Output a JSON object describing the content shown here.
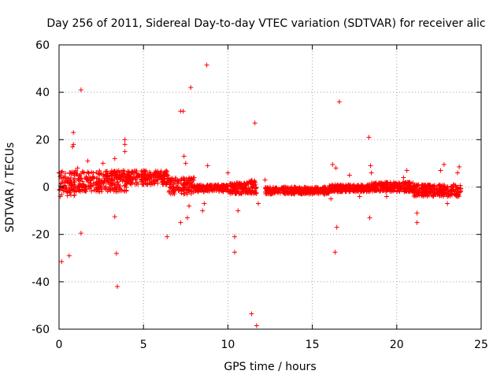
{
  "chart_data": {
    "type": "scatter",
    "title": "Day 256 of 2011, Sidereal Day-to-day VTEC variation (SDTVAR) for receiver alic",
    "xlabel": "GPS time / hours",
    "ylabel": "SDTVAR / TECUs",
    "xlim": [
      0,
      25
    ],
    "ylim": [
      -60,
      60
    ],
    "x_ticks": [
      0,
      5,
      10,
      15,
      20,
      25
    ],
    "y_ticks": [
      -60,
      -40,
      -20,
      0,
      20,
      40,
      60
    ],
    "x_tick_labels": [
      "0",
      "5",
      "10",
      "15",
      "20",
      "25"
    ],
    "y_tick_labels": [
      "-60",
      "-40",
      "-20",
      "0",
      "20",
      "40",
      "60"
    ],
    "grid": true,
    "marker": "+",
    "series": [
      {
        "name": "SDTVAR",
        "color": "#ff0000",
        "dense_bands": [
          {
            "x_start": 0.0,
            "x_end": 1.0,
            "y_low": -4,
            "y_high": 7
          },
          {
            "x_start": 1.0,
            "x_end": 4.0,
            "y_low": -2,
            "y_high": 7
          },
          {
            "x_start": 4.0,
            "x_end": 6.5,
            "y_low": 1,
            "y_high": 7
          },
          {
            "x_start": 6.5,
            "x_end": 8.0,
            "y_low": -3,
            "y_high": 4
          },
          {
            "x_start": 8.0,
            "x_end": 10.0,
            "y_low": -2,
            "y_high": 1
          },
          {
            "x_start": 10.0,
            "x_end": 11.0,
            "y_low": -3,
            "y_high": 2
          },
          {
            "x_start": 11.0,
            "x_end": 11.7,
            "y_low": -3,
            "y_high": 3
          },
          {
            "x_start": 12.2,
            "x_end": 16.0,
            "y_low": -3,
            "y_high": 0
          },
          {
            "x_start": 16.0,
            "x_end": 18.5,
            "y_low": -2,
            "y_high": 1
          },
          {
            "x_start": 18.5,
            "x_end": 21.0,
            "y_low": -2,
            "y_high": 2
          },
          {
            "x_start": 21.0,
            "x_end": 23.8,
            "y_low": -4,
            "y_high": 1
          }
        ],
        "outliers": [
          [
            0.15,
            -31.5
          ],
          [
            0.6,
            -29
          ],
          [
            0.85,
            23
          ],
          [
            0.85,
            18
          ],
          [
            0.8,
            17
          ],
          [
            1.3,
            41
          ],
          [
            1.3,
            -19.5
          ],
          [
            1.1,
            8
          ],
          [
            1.7,
            11
          ],
          [
            2.6,
            10
          ],
          [
            3.3,
            12
          ],
          [
            3.4,
            -28
          ],
          [
            3.45,
            -42
          ],
          [
            3.9,
            20
          ],
          [
            3.9,
            18
          ],
          [
            3.9,
            15
          ],
          [
            3.3,
            -12.5
          ],
          [
            6.4,
            -21
          ],
          [
            7.2,
            32
          ],
          [
            7.35,
            32
          ],
          [
            7.8,
            42
          ],
          [
            7.4,
            13
          ],
          [
            7.5,
            10
          ],
          [
            7.2,
            -15
          ],
          [
            7.6,
            -13
          ],
          [
            8.75,
            51.5
          ],
          [
            8.8,
            9
          ],
          [
            7.7,
            -8
          ],
          [
            8.5,
            -10
          ],
          [
            8.6,
            -7
          ],
          [
            10.0,
            6
          ],
          [
            10.4,
            -21
          ],
          [
            10.4,
            -27.5
          ],
          [
            10.6,
            -10
          ],
          [
            11.4,
            -53.5
          ],
          [
            11.6,
            27
          ],
          [
            11.7,
            -58.5
          ],
          [
            11.5,
            1
          ],
          [
            11.8,
            -7
          ],
          [
            12.2,
            3
          ],
          [
            16.2,
            9.5
          ],
          [
            16.35,
            -27.5
          ],
          [
            16.45,
            -17
          ],
          [
            16.6,
            36
          ],
          [
            16.4,
            8
          ],
          [
            16.1,
            -5
          ],
          [
            17.2,
            5
          ],
          [
            17.8,
            -4
          ],
          [
            18.35,
            21
          ],
          [
            18.4,
            -13
          ],
          [
            18.45,
            9
          ],
          [
            18.5,
            6
          ],
          [
            19.4,
            -4
          ],
          [
            20.4,
            4
          ],
          [
            20.6,
            7
          ],
          [
            21.2,
            -11
          ],
          [
            21.2,
            -15
          ],
          [
            22.6,
            7
          ],
          [
            22.8,
            9.5
          ],
          [
            23.7,
            8.5
          ],
          [
            23.6,
            6
          ],
          [
            23.0,
            -7
          ]
        ]
      }
    ]
  }
}
